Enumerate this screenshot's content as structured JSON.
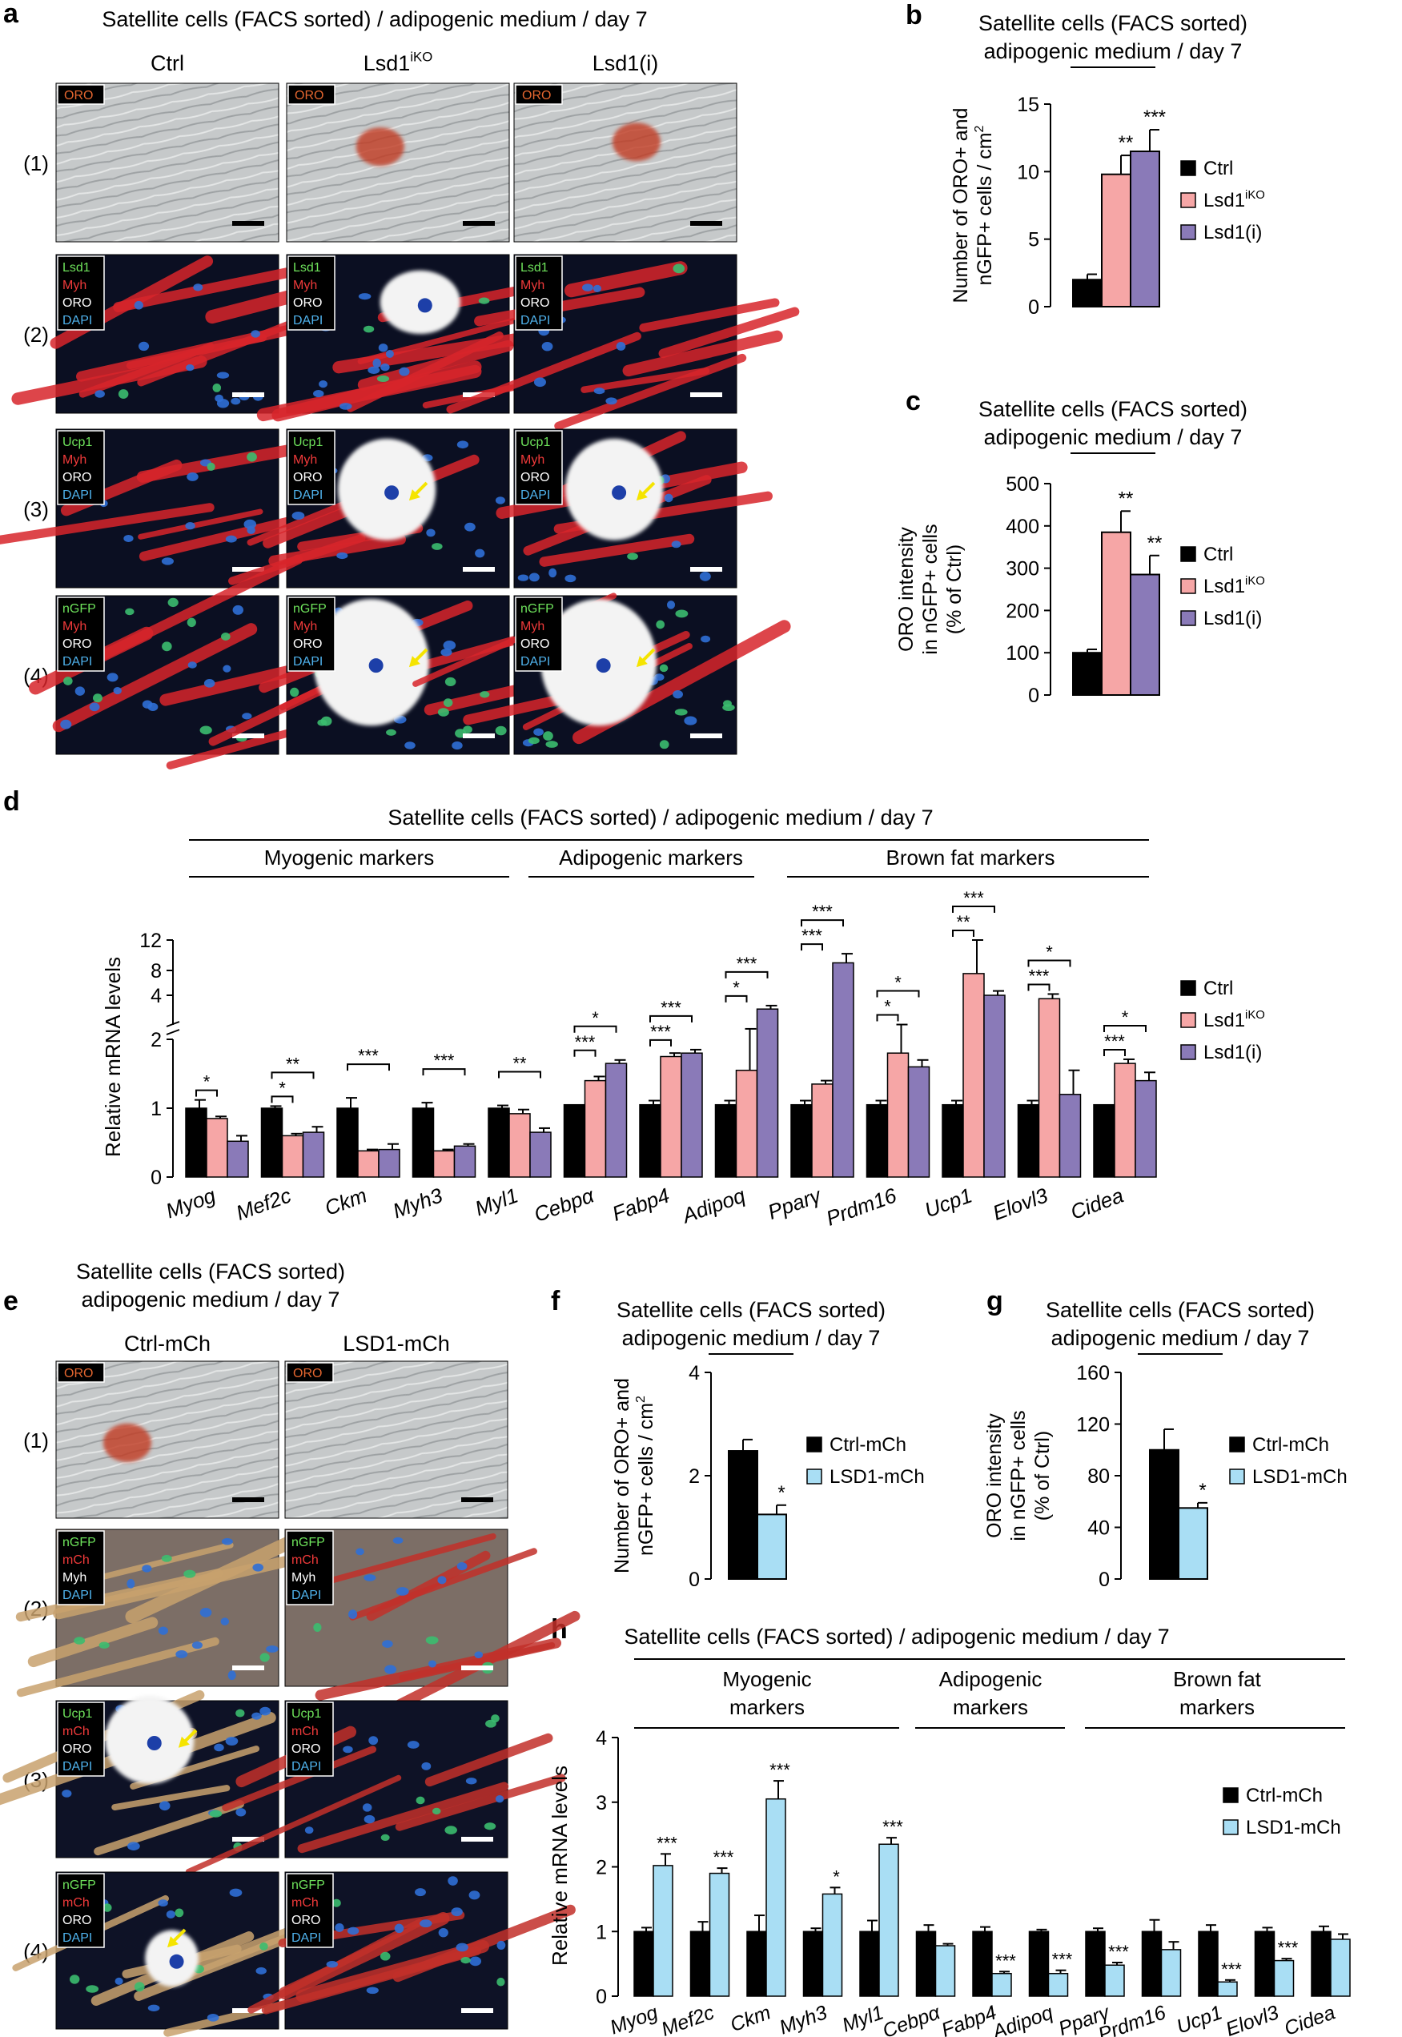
{
  "figure": {
    "panel_labels": [
      "a",
      "b",
      "c",
      "d",
      "e",
      "f",
      "g",
      "h"
    ],
    "colors": {
      "ctrl": "#000000",
      "lsd1_iko": "#f6a6a6",
      "lsd1_i": "#8a7ab8",
      "lsd1_mch": "#a9def4",
      "microscopy_bg": "#0b0f22",
      "brightfield": "#c4c7c8",
      "oro_tag": "#d2552b"
    }
  },
  "panel_a": {
    "title": "Satellite cells (FACS sorted) / adipogenic medium / day 7",
    "columns": [
      "Ctrl",
      "Lsd1",
      "Lsd1(i)"
    ],
    "column_superscripts": [
      "",
      "iKO",
      ""
    ],
    "rows": [
      "(1)",
      "(2)",
      "(3)",
      "(4)"
    ],
    "stain_labels": [
      [
        "ORO"
      ],
      [
        "Lsd1",
        "Myh",
        "ORO",
        "DAPI"
      ],
      [
        "Ucp1",
        "Myh",
        "ORO",
        "DAPI"
      ],
      [
        "nGFP",
        "Myh",
        "ORO",
        "DAPI"
      ]
    ],
    "stain_colors": [
      [
        "#e4662f"
      ],
      [
        "#6ee25b",
        "#ef3a3a",
        "#ffffff",
        "#4fb2ec"
      ],
      [
        "#6ee25b",
        "#ef3a3a",
        "#ffffff",
        "#4fb2ec"
      ],
      [
        "#6ee25b",
        "#ef3a3a",
        "#ffffff",
        "#4fb2ec"
      ]
    ],
    "icons": [
      "scale-bar-icon",
      "yellow-arrow-icon"
    ]
  },
  "panel_e": {
    "title_line1": "Satellite cells (FACS sorted)",
    "title_line2": "adipogenic medium / day 7",
    "columns": [
      "Ctrl-mCh",
      "LSD1-mCh"
    ],
    "rows": [
      "(1)",
      "(2)",
      "(3)",
      "(4)"
    ],
    "stain_labels": [
      [
        "ORO"
      ],
      [
        "nGFP",
        "mCh",
        "Myh",
        "DAPI"
      ],
      [
        "Ucp1",
        "mCh",
        "ORO",
        "DAPI"
      ],
      [
        "nGFP",
        "mCh",
        "ORO",
        "DAPI"
      ]
    ],
    "stain_colors": [
      [
        "#e4662f"
      ],
      [
        "#6ee25b",
        "#ef3a3a",
        "#ffffff",
        "#4fb2ec"
      ],
      [
        "#6ee25b",
        "#ef3a3a",
        "#ffffff",
        "#4fb2ec"
      ],
      [
        "#6ee25b",
        "#ef3a3a",
        "#ffffff",
        "#4fb2ec"
      ]
    ]
  },
  "chart_data": [
    {
      "id": "b",
      "type": "bar",
      "title_line1": "Satellite cells (FACS sorted)",
      "title_line2": "adipogenic medium / day 7",
      "ylabel_line1": "Number of ORO+ and",
      "ylabel_line2": "nGFP+ cells / cm",
      "ylabel_sup": "2",
      "ylim": [
        0,
        15
      ],
      "yticks": [
        0,
        5,
        10,
        15
      ],
      "series": [
        {
          "name": "Ctrl",
          "sup": "",
          "color": "#000000",
          "value": 2.0,
          "error": 0.4,
          "sig": ""
        },
        {
          "name": "Lsd1",
          "sup": "iKO",
          "color": "#f6a6a6",
          "value": 9.8,
          "error": 1.4,
          "sig": "**"
        },
        {
          "name": "Lsd1(i)",
          "sup": "",
          "color": "#8a7ab8",
          "value": 11.5,
          "error": 1.6,
          "sig": "***"
        }
      ]
    },
    {
      "id": "c",
      "type": "bar",
      "title_line1": "Satellite cells (FACS sorted)",
      "title_line2": "adipogenic medium / day 7",
      "ylabel_line1": "ORO intensity",
      "ylabel_line2": "in nGFP+ cells",
      "ylabel_line3": "(% of Ctrl)",
      "ylim": [
        0,
        500
      ],
      "yticks": [
        0,
        100,
        200,
        300,
        400,
        500
      ],
      "series": [
        {
          "name": "Ctrl",
          "sup": "",
          "color": "#000000",
          "value": 100,
          "error": 8,
          "sig": ""
        },
        {
          "name": "Lsd1",
          "sup": "iKO",
          "color": "#f6a6a6",
          "value": 385,
          "error": 50,
          "sig": "**"
        },
        {
          "name": "Lsd1(i)",
          "sup": "",
          "color": "#8a7ab8",
          "value": 285,
          "error": 45,
          "sig": "**"
        }
      ]
    },
    {
      "id": "d",
      "type": "bar",
      "title": "Satellite cells (FACS sorted) / adipogenic medium / day 7",
      "groups": [
        {
          "label": "Myogenic markers",
          "from": 0,
          "to": 4
        },
        {
          "label": "Adipogenic markers",
          "from": 5,
          "to": 7
        },
        {
          "label": "Brown fat markers",
          "from": 8,
          "to": 12
        }
      ],
      "ylabel": "Relative mRNA levels",
      "ylim_lower": [
        0,
        2
      ],
      "yticks_lower": [
        0,
        1,
        2
      ],
      "ylim_upper": [
        2,
        12
      ],
      "yticks_upper": [
        4,
        8,
        12
      ],
      "categories": [
        "Myog",
        "Mef2c",
        "Ckm",
        "Myh3",
        "Myl1",
        "Cebpα",
        "Fabp4",
        "Adipoq",
        "Pparγ",
        "Prdm16",
        "Ucp1",
        "Elovl3",
        "Cidea"
      ],
      "series": [
        {
          "name": "Ctrl",
          "sup": "",
          "color": "#000000",
          "values": [
            1.0,
            1.0,
            1.0,
            1.0,
            1.0,
            1.05,
            1.05,
            1.05,
            1.05,
            1.05,
            1.05,
            1.05,
            1.05
          ],
          "errors": [
            0.12,
            0.03,
            0.15,
            0.08,
            0.04,
            0,
            0.06,
            0.06,
            0.06,
            0.06,
            0.06,
            0.06,
            0
          ]
        },
        {
          "name": "Lsd1",
          "sup": "iKO",
          "color": "#f6a6a6",
          "values": [
            0.85,
            0.6,
            0.38,
            0.38,
            0.92,
            1.4,
            1.75,
            1.55,
            1.35,
            1.8,
            7.5,
            3.8,
            1.65
          ],
          "errors": [
            0.03,
            0.03,
            0.02,
            0.02,
            0.06,
            0.06,
            0.05,
            0.5,
            0.05,
            0.5,
            4.5,
            0.4,
            0.06
          ]
        },
        {
          "name": "Lsd1(i)",
          "sup": "",
          "color": "#8a7ab8",
          "values": [
            0.52,
            0.65,
            0.4,
            0.45,
            0.65,
            1.65,
            1.8,
            3.2,
            9.0,
            1.6,
            4.0,
            1.2,
            1.4
          ],
          "errors": [
            0.08,
            0.08,
            0.08,
            0.03,
            0.06,
            0.05,
            0.05,
            0.2,
            1.2,
            0.1,
            0.7,
            0.35,
            0.12
          ]
        }
      ],
      "sig": [
        [
          "*",
          "*",
          "",
          "",
          "",
          "***",
          "***",
          "*",
          "***",
          "*",
          "**",
          "***",
          "***"
        ],
        [
          "",
          "**",
          "***",
          "***",
          "**",
          "*",
          "***",
          "***",
          "***",
          "*",
          "***",
          "*",
          "*"
        ]
      ]
    },
    {
      "id": "f",
      "type": "bar",
      "title_line1": "Satellite cells (FACS sorted)",
      "title_line2": "adipogenic medium / day 7",
      "ylabel_line1": "Number of ORO+ and",
      "ylabel_line2": "nGFP+ cells / cm",
      "ylabel_sup": "2",
      "ylim": [
        0,
        4
      ],
      "yticks": [
        0,
        2,
        4
      ],
      "series": [
        {
          "name": "Ctrl-mCh",
          "color": "#000000",
          "value": 2.48,
          "error": 0.22,
          "sig": ""
        },
        {
          "name": "LSD1-mCh",
          "color": "#a9def4",
          "value": 1.25,
          "error": 0.18,
          "sig": "*"
        }
      ]
    },
    {
      "id": "g",
      "type": "bar",
      "title_line1": "Satellite cells (FACS sorted)",
      "title_line2": "adipogenic medium / day 7",
      "ylabel_line1": "ORO intensity",
      "ylabel_line2": "in nGFP+ cells",
      "ylabel_line3": "(% of Ctrl)",
      "ylim": [
        0,
        160
      ],
      "yticks": [
        0,
        40,
        80,
        120,
        160
      ],
      "series": [
        {
          "name": "Ctrl-mCh",
          "color": "#000000",
          "value": 100,
          "error": 16,
          "sig": ""
        },
        {
          "name": "LSD1-mCh",
          "color": "#a9def4",
          "value": 55,
          "error": 4,
          "sig": "*"
        }
      ]
    },
    {
      "id": "h",
      "type": "bar",
      "title": "Satellite cells (FACS sorted) / adipogenic medium / day 7",
      "groups": [
        {
          "label_line1": "Myogenic",
          "label_line2": "markers",
          "from": 0,
          "to": 4
        },
        {
          "label_line1": "Adipogenic",
          "label_line2": "markers",
          "from": 5,
          "to": 7
        },
        {
          "label_line1": "Brown fat",
          "label_line2": "markers",
          "from": 8,
          "to": 12
        }
      ],
      "ylabel": "Relative mRNA levels",
      "ylim": [
        0,
        4
      ],
      "yticks": [
        0,
        1,
        2,
        3,
        4
      ],
      "categories": [
        "Myog",
        "Mef2c",
        "Ckm",
        "Myh3",
        "Myl1",
        "Cebpα",
        "Fabp4",
        "Adipoq",
        "Pparγ",
        "Prdm16",
        "Ucp1",
        "Elovl3",
        "Cidea"
      ],
      "series": [
        {
          "name": "Ctrl-mCh",
          "color": "#000000",
          "values": [
            1.0,
            1.0,
            1.0,
            1.0,
            1.0,
            1.0,
            1.0,
            1.0,
            1.0,
            1.0,
            1.0,
            1.0,
            1.0
          ],
          "errors": [
            0.06,
            0.15,
            0.25,
            0.05,
            0.17,
            0.1,
            0.07,
            0.03,
            0.05,
            0.18,
            0.1,
            0.06,
            0.08
          ]
        },
        {
          "name": "LSD1-mCh",
          "color": "#a9def4",
          "values": [
            2.02,
            1.9,
            3.05,
            1.58,
            2.35,
            0.78,
            0.35,
            0.35,
            0.48,
            0.72,
            0.22,
            0.55,
            0.88
          ],
          "errors": [
            0.18,
            0.08,
            0.28,
            0.1,
            0.1,
            0.03,
            0.03,
            0.05,
            0.04,
            0.12,
            0.03,
            0.03,
            0.08
          ]
        }
      ],
      "sig": [
        "***",
        "***",
        "***",
        "*",
        "***",
        "",
        "***",
        "***",
        "***",
        "",
        "***",
        "***",
        ""
      ]
    }
  ]
}
